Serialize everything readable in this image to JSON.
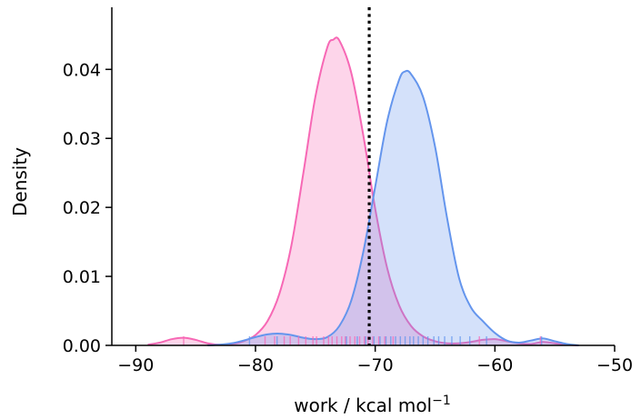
{
  "chart_data": {
    "type": "area",
    "title": "",
    "xlabel": "work / kcal mol",
    "xlabel_sup": "−1",
    "ylabel": "Density",
    "xlim": [
      -92,
      -50
    ],
    "ylim": [
      0,
      0.049
    ],
    "x_ticks": [
      -90,
      -80,
      -70,
      -60,
      -50
    ],
    "x_tick_labels": [
      "−90",
      "−80",
      "−70",
      "−60",
      "−50"
    ],
    "y_ticks": [
      0.0,
      0.01,
      0.02,
      0.03,
      0.04
    ],
    "y_tick_labels": [
      "0.00",
      "0.01",
      "0.02",
      "0.03",
      "0.04"
    ],
    "grid": false,
    "legend": "none",
    "vline": {
      "x": -70.5,
      "style": "dotted",
      "color": "#000000"
    },
    "series": [
      {
        "color": "#f768b5",
        "fill": "rgba(247,104,181,0.28)",
        "x": [
          -89,
          -88,
          -87,
          -86,
          -85,
          -84,
          -83,
          -82,
          -81,
          -80,
          -79,
          -78,
          -77,
          -76,
          -75,
          -74,
          -73.5,
          -73,
          -72,
          -71,
          -70,
          -69,
          -68,
          -67,
          -66,
          -65,
          -64,
          -63,
          -62,
          -61,
          -60,
          -59,
          -58,
          -57,
          -56,
          -55,
          -54,
          -53
        ],
        "y": [
          0.0001,
          0.0004,
          0.0009,
          0.0011,
          0.0008,
          0.0003,
          0.0001,
          0.0002,
          0.0006,
          0.0015,
          0.0035,
          0.0075,
          0.0145,
          0.025,
          0.036,
          0.0432,
          0.0443,
          0.0442,
          0.0395,
          0.0305,
          0.0198,
          0.0112,
          0.0058,
          0.0028,
          0.0013,
          0.0006,
          0.0003,
          0.0003,
          0.0005,
          0.0008,
          0.0009,
          0.0006,
          0.0003,
          0.0002,
          0.0005,
          0.0003,
          0.0001,
          0.0
        ]
      },
      {
        "color": "#6495ed",
        "fill": "rgba(100,149,237,0.28)",
        "x": [
          -84,
          -83,
          -82,
          -81,
          -80,
          -79,
          -78,
          -77,
          -76,
          -75,
          -74,
          -73,
          -72,
          -71,
          -70,
          -69,
          -68,
          -67.5,
          -67,
          -66,
          -65,
          -64,
          -63,
          -62,
          -61,
          -60,
          -59,
          -58,
          -57,
          -56,
          -55,
          -54,
          -53
        ],
        "y": [
          0.0,
          0.0001,
          0.0003,
          0.0007,
          0.0012,
          0.0016,
          0.0017,
          0.0015,
          0.0011,
          0.0009,
          0.0012,
          0.0028,
          0.0065,
          0.0135,
          0.023,
          0.0325,
          0.0385,
          0.0397,
          0.0393,
          0.036,
          0.0288,
          0.0185,
          0.0098,
          0.0055,
          0.0035,
          0.0018,
          0.0007,
          0.0004,
          0.0007,
          0.001,
          0.0006,
          0.0002,
          0.0
        ]
      }
    ],
    "rug": [
      {
        "color": "#f768b5",
        "x": [
          -86,
          -79.2,
          -78.4,
          -77.6,
          -77.1,
          -76.4,
          -75.8,
          -75.2,
          -74.9,
          -74.3,
          -73.9,
          -73.6,
          -73.2,
          -72.8,
          -72.5,
          -72.1,
          -71.7,
          -71.3,
          -70.9,
          -70.6,
          -70.2,
          -69.7,
          -69.2,
          -68.5,
          -61.3,
          -56.2
        ]
      },
      {
        "color": "#6495ed",
        "x": [
          -80.5,
          -78.2,
          -72.4,
          -71.5,
          -70.8,
          -70.1,
          -69.6,
          -69.1,
          -68.7,
          -68.3,
          -67.9,
          -67.5,
          -67.1,
          -66.8,
          -66.4,
          -66.0,
          -65.6,
          -65.1,
          -64.7,
          -64.2,
          -63.6,
          -62.9,
          -62.1,
          -60.7,
          -56.1
        ]
      }
    ]
  }
}
